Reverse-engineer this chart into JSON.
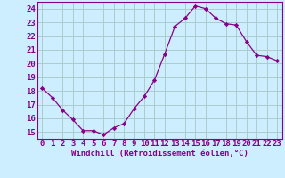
{
  "x": [
    0,
    1,
    2,
    3,
    4,
    5,
    6,
    7,
    8,
    9,
    10,
    11,
    12,
    13,
    14,
    15,
    16,
    17,
    18,
    19,
    20,
    21,
    22,
    23
  ],
  "y": [
    18.2,
    17.5,
    16.6,
    15.9,
    15.1,
    15.1,
    14.8,
    15.3,
    15.6,
    16.7,
    17.6,
    18.8,
    20.7,
    22.7,
    23.3,
    24.2,
    24.0,
    23.3,
    22.9,
    22.8,
    21.6,
    20.6,
    20.5,
    20.2
  ],
  "line_color": "#880088",
  "marker": "D",
  "marker_size": 2.2,
  "background_color": "#cceeff",
  "grid_color": "#aacccc",
  "xlabel": "Windchill (Refroidissement éolien,°C)",
  "xlabel_color": "#880088",
  "tick_color": "#880088",
  "ylabel_ticks": [
    15,
    16,
    17,
    18,
    19,
    20,
    21,
    22,
    23,
    24
  ],
  "xlim": [
    -0.5,
    23.5
  ],
  "ylim": [
    14.5,
    24.5
  ],
  "xlabel_fontsize": 6.5,
  "tick_fontsize": 6.5,
  "spine_color": "#880088"
}
